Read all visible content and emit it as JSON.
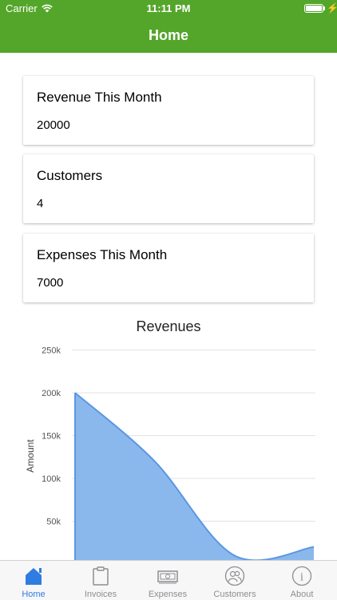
{
  "status_bar": {
    "carrier": "Carrier",
    "time": "11:11 PM"
  },
  "nav": {
    "title": "Home"
  },
  "cards": [
    {
      "title": "Revenue This Month",
      "value": "20000"
    },
    {
      "title": "Customers",
      "value": "4"
    },
    {
      "title": "Expenses This Month",
      "value": "7000"
    }
  ],
  "colors": {
    "header": "#54a62a",
    "area_fill": "#8bb8ec",
    "area_line": "#5a97e2",
    "active_tab": "#2f7de1"
  },
  "chart_data": {
    "type": "area",
    "title": "Revenues",
    "xlabel": "",
    "ylabel": "Amount",
    "yticks": [
      "250k",
      "200k",
      "150k",
      "100k",
      "50k"
    ],
    "ylim": [
      0,
      250000
    ],
    "x": [
      1,
      2,
      3,
      4
    ],
    "values": [
      200000,
      120000,
      10000,
      20000
    ],
    "grid": true,
    "smooth": true
  },
  "tabs": [
    {
      "label": "Home",
      "icon": "home-icon",
      "active": true
    },
    {
      "label": "Invoices",
      "icon": "invoice-icon",
      "active": false
    },
    {
      "label": "Expenses",
      "icon": "cash-icon",
      "active": false
    },
    {
      "label": "Customers",
      "icon": "customers-icon",
      "active": false
    },
    {
      "label": "About",
      "icon": "info-icon",
      "active": false
    }
  ]
}
